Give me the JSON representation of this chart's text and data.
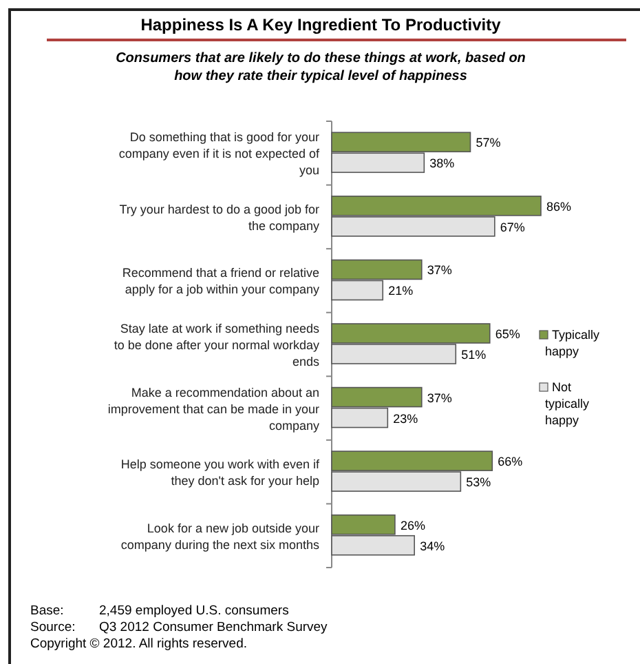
{
  "chart_data": {
    "type": "bar",
    "orientation": "horizontal",
    "title": "Happiness Is A Key Ingredient To Productivity",
    "subtitle": "Consumers that are likely to do these things at work, based on how they rate their typical level of happiness",
    "categories": [
      "Do something that is good for your company even if it is not expected of you",
      "Try your hardest to do a good job for the company",
      "Recommend that a friend or relative apply for a job within your company",
      "Stay late at work if something needs to be done after your normal workday ends",
      "Make a recommendation about an improvement that can be made in your company",
      "Help someone you work with even if they don't ask for your help",
      "Look for a new job outside your company during the next six months"
    ],
    "series": [
      {
        "name": "Typically happy",
        "color": "#7f9a48",
        "values": [
          57,
          86,
          37,
          65,
          37,
          66,
          26
        ],
        "value_labels": [
          "57%",
          "86%",
          "37%",
          "65%",
          "37%",
          "66%",
          "26%"
        ]
      },
      {
        "name": "Not typically happy",
        "color": "#e3e3e3",
        "values": [
          38,
          67,
          21,
          51,
          23,
          53,
          34
        ],
        "value_labels": [
          "38%",
          "67%",
          "21%",
          "51%",
          "23%",
          "53%",
          "34%"
        ]
      }
    ],
    "legend": "right",
    "tick_labels": "y",
    "annotations": [
      "Base:\t2,459 employed U.S. consumers",
      "Source:\tQ3 2012 Consumer Benchmark Survey",
      "Copyright © 2012. All rights reserved."
    ]
  }
}
